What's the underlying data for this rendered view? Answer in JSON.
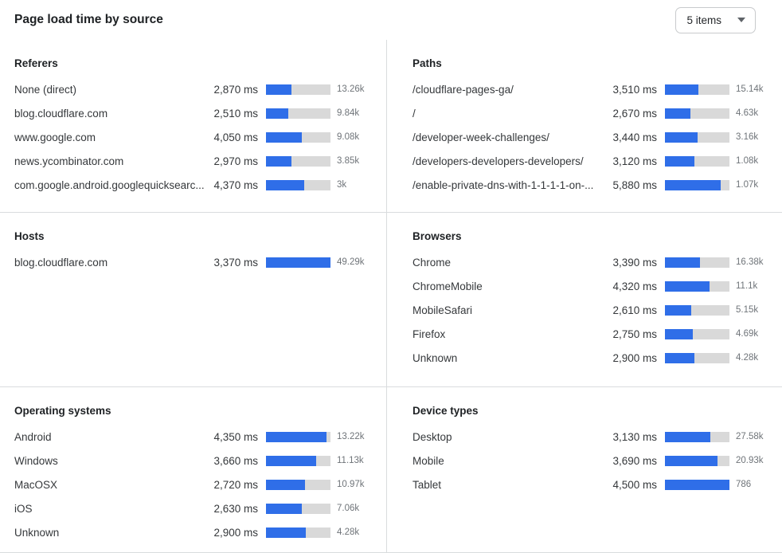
{
  "header": {
    "title": "Page load time by source",
    "items_dropdown": {
      "label": "5 items"
    }
  },
  "colors": {
    "bar_fill": "#2f6ee8",
    "bar_track": "#d9d9d9",
    "divider": "#d9dcde",
    "count_text": "#6f7479"
  },
  "chart_data": {
    "type": "bar",
    "unit": "ms",
    "title": "Page load time by source",
    "panels": [
      {
        "title": "Referers",
        "rows": [
          {
            "label": "None (direct)",
            "value_ms": 2870,
            "ms": "2,870 ms",
            "count": "13.26k",
            "bar_pct": 39
          },
          {
            "label": "blog.cloudflare.com",
            "value_ms": 2510,
            "ms": "2,510 ms",
            "count": "9.84k",
            "bar_pct": 34
          },
          {
            "label": "www.google.com",
            "value_ms": 4050,
            "ms": "4,050 ms",
            "count": "9.08k",
            "bar_pct": 55
          },
          {
            "label": "news.ycombinator.com",
            "value_ms": 2970,
            "ms": "2,970 ms",
            "count": "3.85k",
            "bar_pct": 40
          },
          {
            "label": "com.google.android.googlequicksearc...",
            "value_ms": 4370,
            "ms": "4,370 ms",
            "count": "3k",
            "bar_pct": 59
          }
        ]
      },
      {
        "title": "Paths",
        "rows": [
          {
            "label": "/cloudflare-pages-ga/",
            "value_ms": 3510,
            "ms": "3,510 ms",
            "count": "15.14k",
            "bar_pct": 52
          },
          {
            "label": "/",
            "value_ms": 2670,
            "ms": "2,670 ms",
            "count": "4.63k",
            "bar_pct": 39
          },
          {
            "label": "/developer-week-challenges/",
            "value_ms": 3440,
            "ms": "3,440 ms",
            "count": "3.16k",
            "bar_pct": 51
          },
          {
            "label": "/developers-developers-developers/",
            "value_ms": 3120,
            "ms": "3,120 ms",
            "count": "1.08k",
            "bar_pct": 46
          },
          {
            "label": "/enable-private-dns-with-1-1-1-1-on-...",
            "value_ms": 5880,
            "ms": "5,880 ms",
            "count": "1.07k",
            "bar_pct": 86
          }
        ]
      },
      {
        "title": "Hosts",
        "rows": [
          {
            "label": "blog.cloudflare.com",
            "value_ms": 3370,
            "ms": "3,370 ms",
            "count": "49.29k",
            "bar_pct": 100
          }
        ]
      },
      {
        "title": "Browsers",
        "rows": [
          {
            "label": "Chrome",
            "value_ms": 3390,
            "ms": "3,390 ms",
            "count": "16.38k",
            "bar_pct": 54
          },
          {
            "label": "ChromeMobile",
            "value_ms": 4320,
            "ms": "4,320 ms",
            "count": "11.1k",
            "bar_pct": 69
          },
          {
            "label": "MobileSafari",
            "value_ms": 2610,
            "ms": "2,610 ms",
            "count": "5.15k",
            "bar_pct": 41
          },
          {
            "label": "Firefox",
            "value_ms": 2750,
            "ms": "2,750 ms",
            "count": "4.69k",
            "bar_pct": 43
          },
          {
            "label": "Unknown",
            "value_ms": 2900,
            "ms": "2,900 ms",
            "count": "4.28k",
            "bar_pct": 46
          }
        ]
      },
      {
        "title": "Operating systems",
        "rows": [
          {
            "label": "Android",
            "value_ms": 4350,
            "ms": "4,350 ms",
            "count": "13.22k",
            "bar_pct": 94
          },
          {
            "label": "Windows",
            "value_ms": 3660,
            "ms": "3,660 ms",
            "count": "11.13k",
            "bar_pct": 78
          },
          {
            "label": "MacOSX",
            "value_ms": 2720,
            "ms": "2,720 ms",
            "count": "10.97k",
            "bar_pct": 60
          },
          {
            "label": "iOS",
            "value_ms": 2630,
            "ms": "2,630 ms",
            "count": "7.06k",
            "bar_pct": 56
          },
          {
            "label": "Unknown",
            "value_ms": 2900,
            "ms": "2,900 ms",
            "count": "4.28k",
            "bar_pct": 62
          }
        ]
      },
      {
        "title": "Device types",
        "rows": [
          {
            "label": "Desktop",
            "value_ms": 3130,
            "ms": "3,130 ms",
            "count": "27.58k",
            "bar_pct": 70
          },
          {
            "label": "Mobile",
            "value_ms": 3690,
            "ms": "3,690 ms",
            "count": "20.93k",
            "bar_pct": 82
          },
          {
            "label": "Tablet",
            "value_ms": 4500,
            "ms": "4,500 ms",
            "count": "786",
            "bar_pct": 100
          }
        ]
      }
    ]
  }
}
